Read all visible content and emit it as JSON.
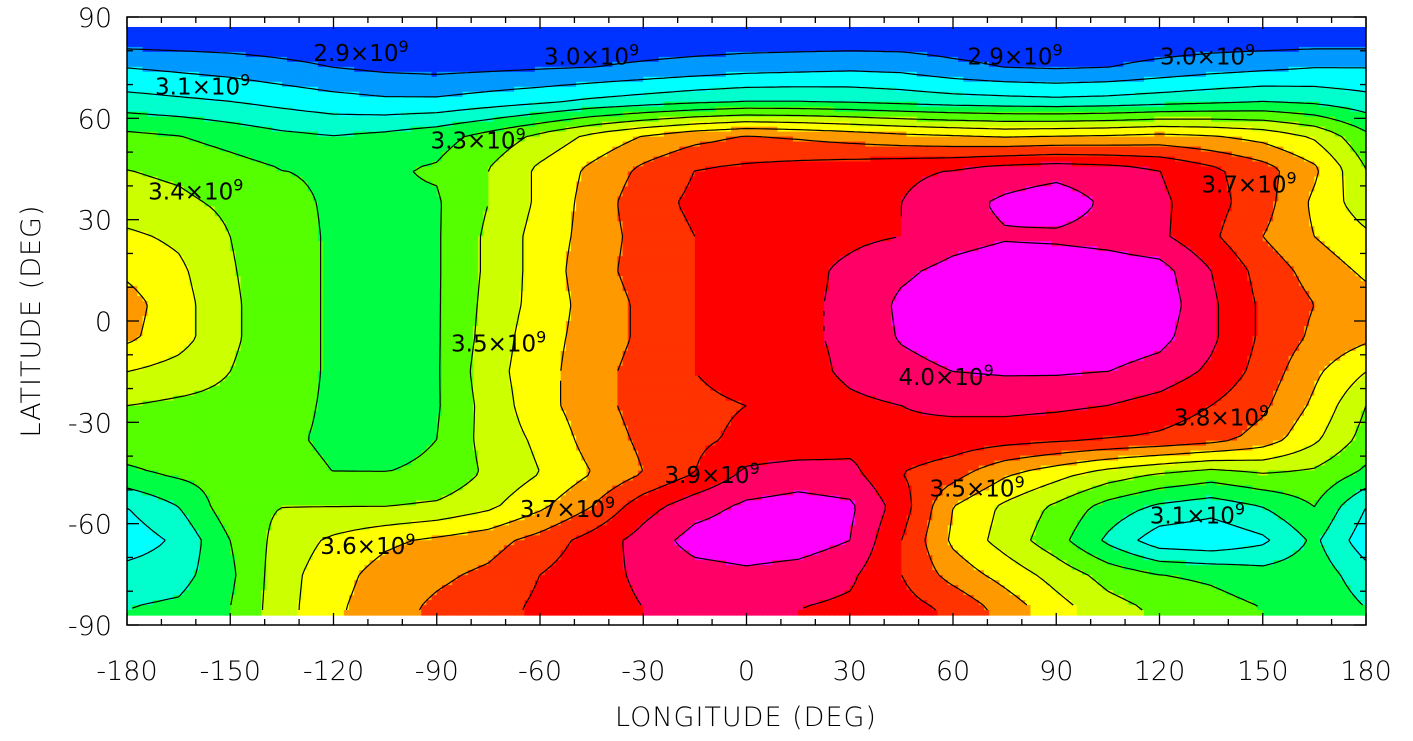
{
  "chart_data": {
    "type": "heatmap",
    "title": "",
    "xlabel": "LONGITUDE (DEG)",
    "ylabel": "LATITUDE (DEG)",
    "xlim": [
      -180,
      180
    ],
    "ylim": [
      -90,
      90
    ],
    "x_ticks": [
      "-180",
      "-150",
      "-120",
      "-90",
      "-60",
      "-30",
      "0",
      "30",
      "60",
      "90",
      "120",
      "150",
      "180"
    ],
    "y_ticks": [
      "90",
      "60",
      "30",
      "0",
      "-30",
      "-60",
      "-90"
    ],
    "colors": {
      "2.8e9": "#0033ff",
      "2.9e9": "#0099ff",
      "3.0e9": "#00ffff",
      "3.1e9": "#00ffcc",
      "3.2e9": "#00ff44",
      "3.3e9": "#55ff00",
      "3.4e9": "#ccff00",
      "3.5e9": "#ffff00",
      "3.6e9": "#ff9900",
      "3.7e9": "#ff3300",
      "3.8e9": "#ff0000",
      "3.9e9": "#ff0066",
      "4.0e9": "#ff00ff"
    },
    "contour_levels": [
      2900000000.0,
      3000000000.0,
      3100000000.0,
      3200000000.0,
      3300000000.0,
      3400000000.0,
      3500000000.0,
      3600000000.0,
      3700000000.0,
      3800000000.0,
      3900000000.0,
      4000000000.0
    ],
    "grid": {
      "lon": [
        -180,
        -165,
        -150,
        -135,
        -120,
        -105,
        -90,
        -75,
        -60,
        -45,
        -30,
        -15,
        0,
        15,
        30,
        45,
        60,
        75,
        90,
        105,
        120,
        135,
        150,
        165,
        180
      ],
      "lat": [
        85,
        75,
        65,
        55,
        45,
        35,
        25,
        15,
        5,
        -5,
        -15,
        -25,
        -35,
        -45,
        -55,
        -65,
        -75,
        -85
      ],
      "values_e9": [
        [
          2.82,
          2.82,
          2.82,
          2.82,
          2.82,
          2.82,
          2.82,
          2.82,
          2.82,
          2.82,
          2.82,
          2.82,
          2.82,
          2.82,
          2.82,
          2.82,
          2.82,
          2.82,
          2.82,
          2.82,
          2.82,
          2.82,
          2.82,
          2.82,
          2.82
        ],
        [
          3.0,
          2.98,
          2.96,
          2.93,
          2.9,
          2.88,
          2.87,
          2.88,
          2.89,
          2.9,
          2.92,
          2.94,
          2.96,
          2.97,
          2.98,
          2.97,
          2.93,
          2.9,
          2.89,
          2.9,
          2.93,
          2.96,
          2.98,
          3.0,
          3.0
        ],
        [
          3.14,
          3.12,
          3.1,
          3.07,
          3.04,
          3.02,
          3.02,
          3.05,
          3.08,
          3.12,
          3.15,
          3.18,
          3.2,
          3.2,
          3.19,
          3.17,
          3.15,
          3.14,
          3.13,
          3.14,
          3.16,
          3.18,
          3.2,
          3.18,
          3.14
        ],
        [
          3.32,
          3.3,
          3.26,
          3.22,
          3.2,
          3.22,
          3.26,
          3.33,
          3.42,
          3.52,
          3.6,
          3.66,
          3.7,
          3.68,
          3.65,
          3.62,
          3.6,
          3.58,
          3.59,
          3.6,
          3.62,
          3.6,
          3.56,
          3.48,
          3.32
        ],
        [
          3.4,
          3.38,
          3.34,
          3.3,
          3.29,
          3.29,
          3.31,
          3.4,
          3.52,
          3.62,
          3.72,
          3.8,
          3.82,
          3.84,
          3.86,
          3.88,
          3.9,
          3.94,
          3.96,
          3.94,
          3.9,
          3.82,
          3.74,
          3.62,
          3.4
        ],
        [
          3.44,
          3.42,
          3.38,
          3.32,
          3.29,
          3.29,
          3.29,
          3.4,
          3.52,
          3.64,
          3.76,
          3.82,
          3.84,
          3.86,
          3.88,
          3.9,
          3.96,
          4.02,
          4.06,
          3.98,
          3.92,
          3.84,
          3.74,
          3.58,
          3.44
        ],
        [
          3.52,
          3.48,
          3.4,
          3.33,
          3.29,
          3.28,
          3.29,
          3.42,
          3.54,
          3.64,
          3.74,
          3.8,
          3.84,
          3.86,
          3.88,
          3.9,
          3.96,
          3.99,
          3.98,
          3.96,
          3.92,
          3.82,
          3.7,
          3.6,
          3.52
        ],
        [
          3.58,
          3.52,
          3.41,
          3.33,
          3.29,
          3.28,
          3.29,
          3.42,
          3.54,
          3.66,
          3.74,
          3.8,
          3.84,
          3.87,
          3.92,
          3.98,
          4.03,
          4.06,
          4.07,
          4.06,
          4.04,
          3.9,
          3.76,
          3.66,
          3.58
        ],
        [
          3.64,
          3.54,
          3.42,
          3.33,
          3.29,
          3.28,
          3.29,
          3.43,
          3.54,
          3.64,
          3.72,
          3.8,
          3.86,
          3.88,
          3.92,
          4.02,
          4.06,
          4.08,
          4.1,
          4.08,
          4.06,
          3.92,
          3.78,
          3.7,
          3.64
        ],
        [
          3.62,
          3.54,
          3.42,
          3.33,
          3.29,
          3.28,
          3.29,
          3.44,
          3.56,
          3.64,
          3.72,
          3.8,
          3.84,
          3.88,
          3.92,
          4.01,
          4.06,
          4.06,
          4.07,
          4.06,
          4.03,
          3.92,
          3.78,
          3.68,
          3.62
        ],
        [
          3.5,
          3.46,
          3.4,
          3.33,
          3.29,
          3.28,
          3.29,
          3.46,
          3.56,
          3.66,
          3.74,
          3.8,
          3.84,
          3.86,
          3.92,
          3.96,
          4.0,
          4.01,
          4.01,
          4.0,
          3.96,
          3.88,
          3.76,
          3.62,
          3.5
        ],
        [
          3.4,
          3.38,
          3.37,
          3.32,
          3.29,
          3.28,
          3.29,
          3.44,
          3.56,
          3.66,
          3.74,
          3.78,
          3.8,
          3.84,
          3.88,
          3.9,
          3.92,
          3.93,
          3.92,
          3.9,
          3.86,
          3.8,
          3.72,
          3.58,
          3.4
        ],
        [
          3.36,
          3.36,
          3.34,
          3.31,
          3.29,
          3.28,
          3.3,
          3.44,
          3.52,
          3.64,
          3.72,
          3.78,
          3.82,
          3.82,
          3.86,
          3.88,
          3.86,
          3.84,
          3.82,
          3.8,
          3.78,
          3.74,
          3.66,
          3.52,
          3.36
        ],
        [
          3.28,
          3.32,
          3.34,
          3.32,
          3.3,
          3.3,
          3.31,
          3.42,
          3.5,
          3.6,
          3.7,
          3.8,
          3.92,
          3.95,
          3.93,
          3.8,
          3.74,
          3.62,
          3.54,
          3.46,
          3.4,
          3.36,
          3.4,
          3.38,
          3.28
        ],
        [
          3.1,
          3.2,
          3.36,
          3.4,
          3.4,
          3.4,
          3.42,
          3.48,
          3.58,
          3.7,
          3.86,
          3.96,
          4.02,
          4.04,
          4.02,
          3.85,
          3.6,
          3.48,
          3.38,
          3.26,
          3.18,
          3.14,
          3.2,
          3.3,
          3.1
        ],
        [
          3.04,
          3.12,
          3.3,
          3.44,
          3.52,
          3.58,
          3.62,
          3.66,
          3.74,
          3.84,
          3.94,
          4.04,
          4.06,
          4.05,
          4.0,
          3.8,
          3.58,
          3.46,
          3.34,
          3.18,
          3.04,
          3.02,
          3.08,
          3.22,
          3.04
        ],
        [
          3.14,
          3.16,
          3.28,
          3.46,
          3.56,
          3.64,
          3.68,
          3.72,
          3.8,
          3.86,
          3.92,
          3.96,
          3.98,
          3.96,
          3.92,
          3.8,
          3.66,
          3.56,
          3.46,
          3.36,
          3.3,
          3.28,
          3.24,
          3.26,
          3.14
        ],
        [
          3.2,
          3.22,
          3.3,
          3.46,
          3.58,
          3.66,
          3.72,
          3.76,
          3.82,
          3.86,
          3.9,
          3.92,
          3.92,
          3.9,
          3.88,
          3.84,
          3.78,
          3.66,
          3.54,
          3.44,
          3.38,
          3.34,
          3.3,
          3.28,
          3.2
        ]
      ]
    },
    "contour_labels": [
      {
        "text": "2.9×10",
        "exp": "9",
        "lon": -112,
        "lat": 77
      },
      {
        "text": "3.0×10",
        "exp": "9",
        "lon": -45,
        "lat": 76
      },
      {
        "text": "2.9×10",
        "exp": "9",
        "lon": 78,
        "lat": 76
      },
      {
        "text": "3.0×10",
        "exp": "9",
        "lon": 134,
        "lat": 76
      },
      {
        "text": "3.1×10",
        "exp": "9",
        "lon": -158,
        "lat": 67
      },
      {
        "text": "3.3×10",
        "exp": "9",
        "lon": -78,
        "lat": 51
      },
      {
        "text": "3.4×10",
        "exp": "9",
        "lon": -160,
        "lat": 36
      },
      {
        "text": "3.5×10",
        "exp": "9",
        "lon": -72,
        "lat": -9
      },
      {
        "text": "3.7×10",
        "exp": "9",
        "lon": 146,
        "lat": 38
      },
      {
        "text": "4.0×10",
        "exp": "9",
        "lon": 58,
        "lat": -19
      },
      {
        "text": "3.8×10",
        "exp": "9",
        "lon": 138,
        "lat": -31
      },
      {
        "text": "3.9×10",
        "exp": "9",
        "lon": -10,
        "lat": -48
      },
      {
        "text": "3.5×10",
        "exp": "9",
        "lon": 67,
        "lat": -52
      },
      {
        "text": "3.1×10",
        "exp": "9",
        "lon": 131,
        "lat": -60
      },
      {
        "text": "3.7×10",
        "exp": "9",
        "lon": -52,
        "lat": -58
      },
      {
        "text": "3.6×10",
        "exp": "9",
        "lon": -110,
        "lat": -69
      }
    ]
  }
}
